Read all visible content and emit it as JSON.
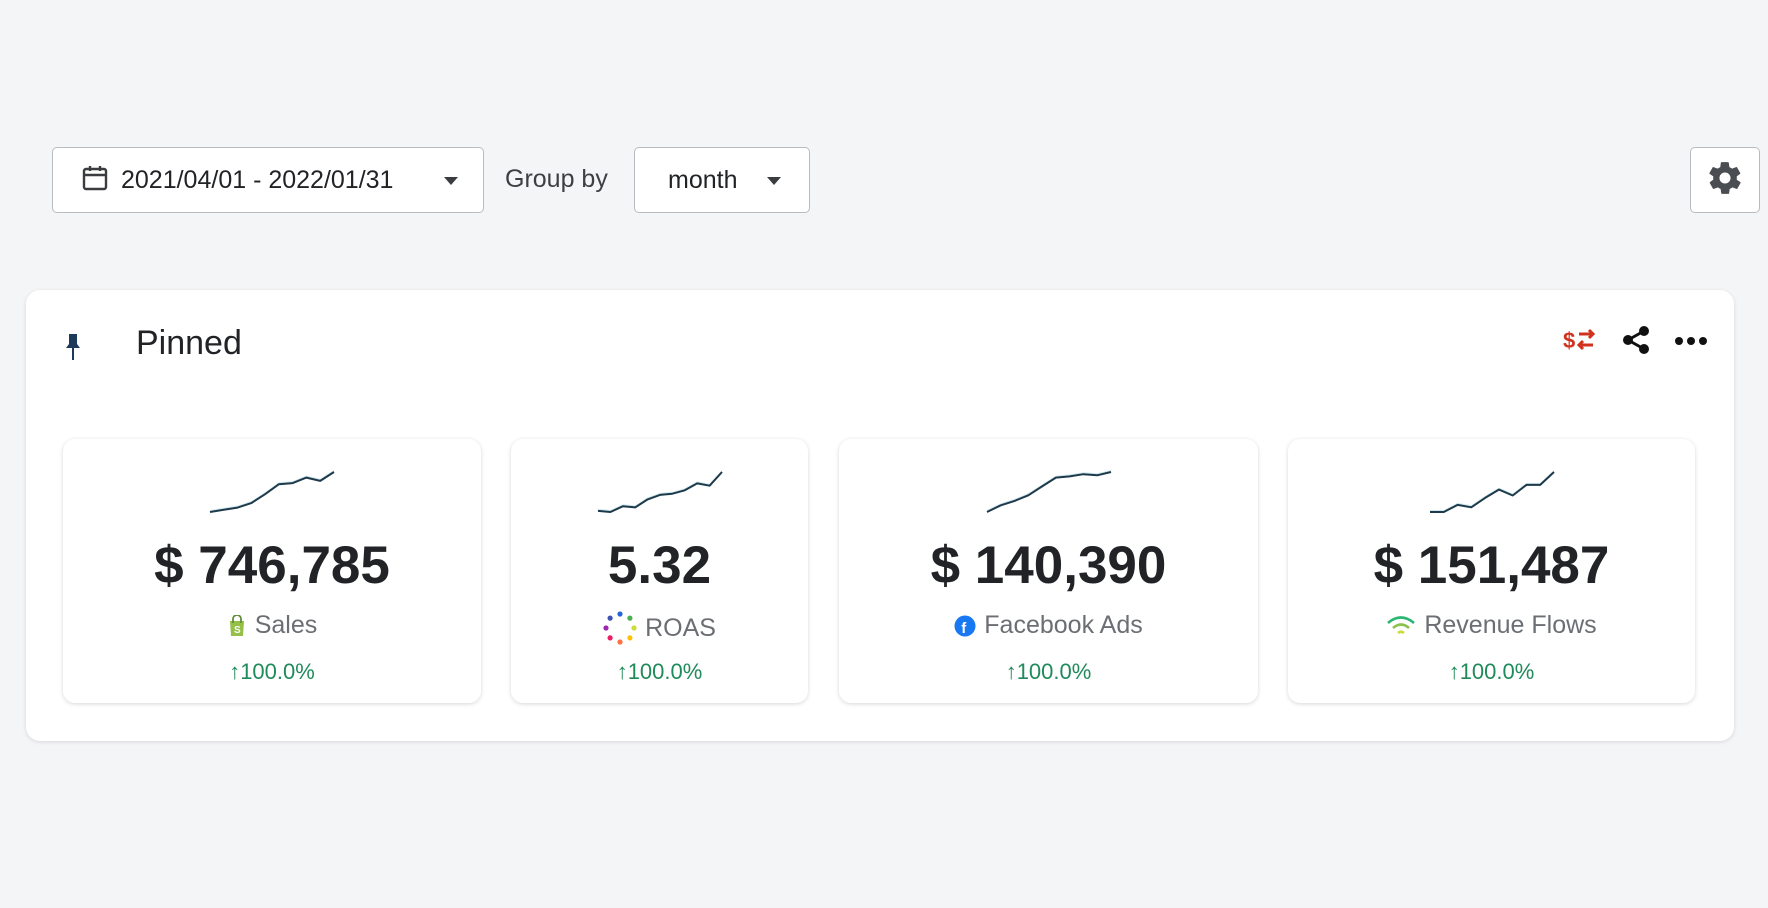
{
  "toolbar": {
    "date_range": "2021/04/01 - 2022/01/31",
    "group_by_label": "Group by",
    "group_by_value": "month"
  },
  "panel": {
    "title": "Pinned",
    "icons": {
      "pin": "pin-icon",
      "currency_switch": "currency-switch-icon",
      "share": "share-icon",
      "more": "more-icon",
      "settings": "gear-icon"
    },
    "colors": {
      "currency_switch": "#d0321e",
      "positive_change": "#1f8a5a",
      "sparkline_stroke": "#1e3a4a",
      "sparkline_fill": "#cfe8ee"
    }
  },
  "cards": [
    {
      "value": "$ 746,785",
      "metric": "Sales",
      "icon": "shopify-bag-icon",
      "change": "↑100.0%",
      "trend": [
        2,
        4,
        6,
        10,
        18,
        27,
        28,
        33,
        30,
        38
      ]
    },
    {
      "value": "5.32",
      "metric": "ROAS",
      "icon": "dots-ring-icon",
      "change": "↑100.0%",
      "trend": [
        3,
        2,
        7,
        6,
        13,
        17,
        18,
        21,
        27,
        25,
        37
      ]
    },
    {
      "value": "$ 140,390",
      "metric": "Facebook Ads",
      "icon": "facebook-icon",
      "change": "↑100.0%",
      "trend": [
        1,
        7,
        11,
        16,
        24,
        32,
        33,
        35,
        34,
        37
      ]
    },
    {
      "value": "$ 151,487",
      "metric": "Revenue Flows",
      "icon": "signal-icon",
      "change": "↑100.0%",
      "trend": [
        2,
        2,
        8,
        6,
        14,
        21,
        16,
        25,
        25,
        36
      ]
    }
  ]
}
